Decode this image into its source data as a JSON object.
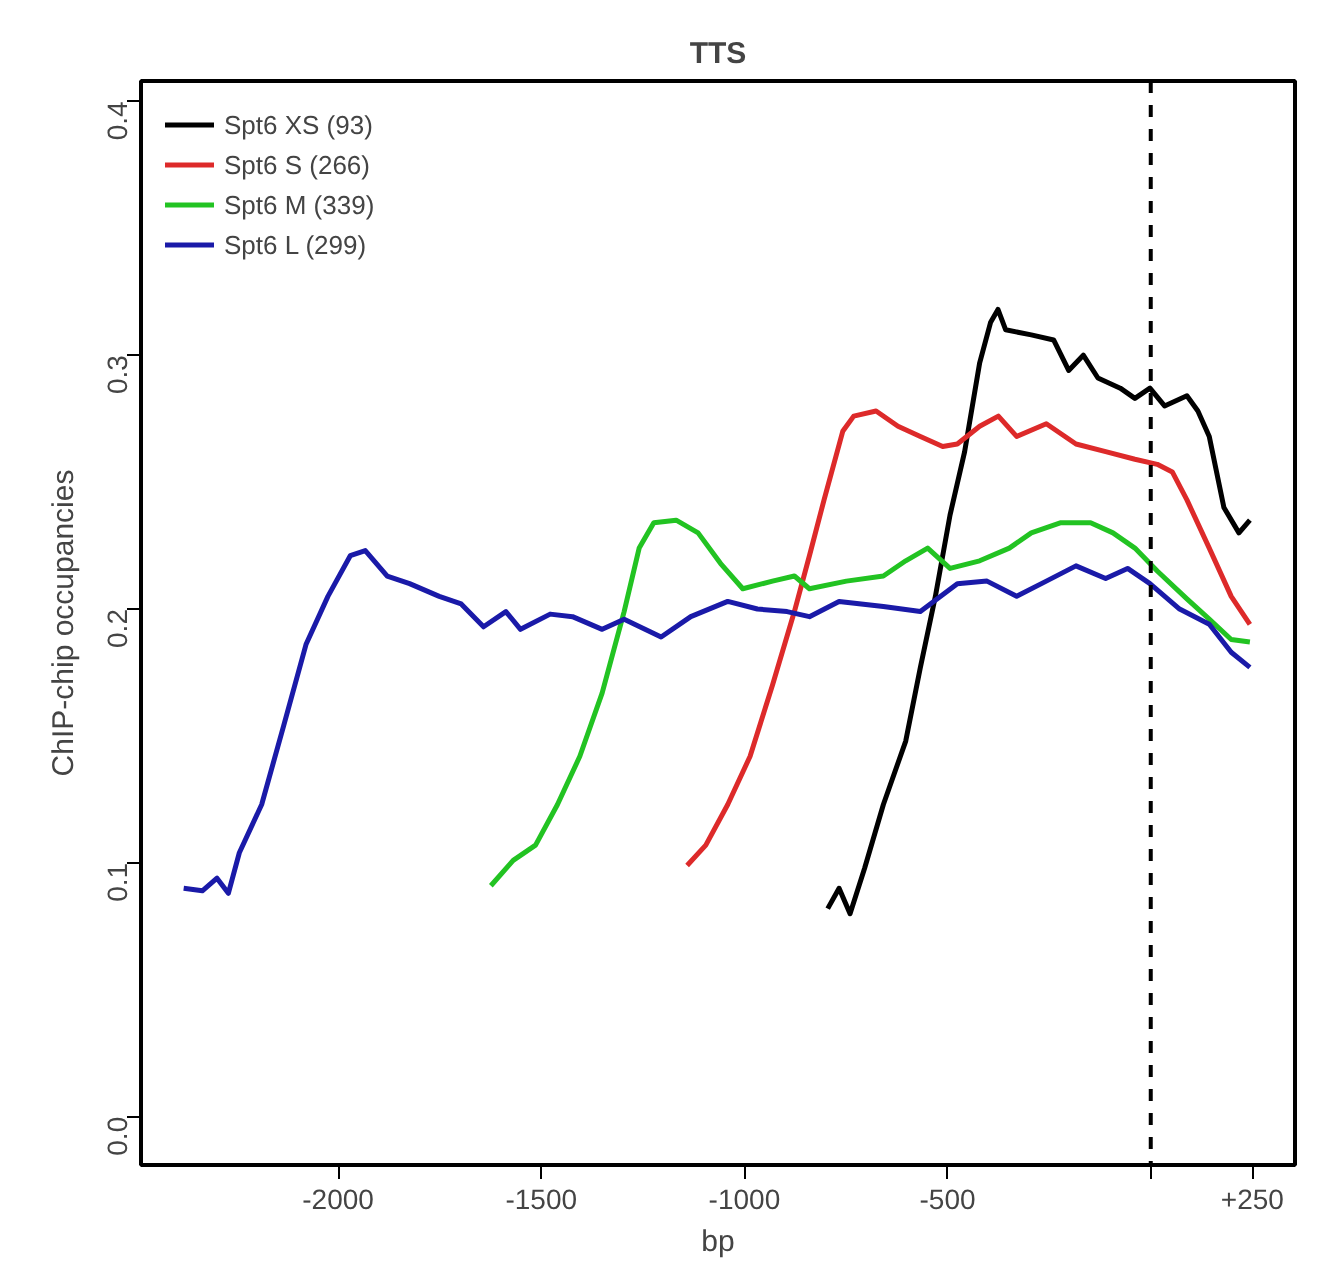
{
  "chart_data": {
    "type": "line",
    "title": "TTS",
    "xlabel": "bp",
    "ylabel": "ChIP-chip occupancies",
    "xlim": [
      -2485,
      355
    ],
    "ylim": [
      -0.019,
      0.408
    ],
    "xticks": [
      -2000,
      -1500,
      -1000,
      -500,
      {
        "value": 0,
        "label": null
      },
      {
        "value": 250,
        "label": "+250"
      }
    ],
    "yticks": [
      {
        "value": 0,
        "label": "0.0"
      },
      0.1,
      0.2,
      0.3,
      0.4
    ],
    "grid": false,
    "legend": "top left",
    "marker": "none",
    "line_style": "solid",
    "ref_lines": [
      {
        "axis": "x",
        "value": 0,
        "label": null,
        "color": "#000000",
        "line_style": "dashed"
      }
    ],
    "series": [
      {
        "name": "Spt6 XS (93)",
        "color": "#000000",
        "x": [
          -795,
          -767,
          -740,
          -704,
          -658,
          -603,
          -567,
          -530,
          -494,
          -458,
          -421,
          -394,
          -376,
          -357,
          -294,
          -239,
          -202,
          -166,
          -130,
          -75,
          -39,
          -2,
          34,
          89,
          116,
          144,
          180,
          217,
          244
        ],
        "values": [
          0.082,
          0.09,
          0.08,
          0.098,
          0.123,
          0.148,
          0.177,
          0.205,
          0.237,
          0.262,
          0.297,
          0.313,
          0.318,
          0.31,
          0.308,
          0.306,
          0.294,
          0.3,
          0.291,
          0.287,
          0.283,
          0.287,
          0.28,
          0.284,
          0.278,
          0.268,
          0.24,
          0.23,
          0.235
        ]
      },
      {
        "name": "Spt6 S (266)",
        "color": "#dd2a2a",
        "x": [
          -1141,
          -1095,
          -1041,
          -986,
          -931,
          -877,
          -840,
          -804,
          -758,
          -731,
          -676,
          -622,
          -567,
          -512,
          -476,
          -421,
          -375,
          -330,
          -257,
          -184,
          -111,
          -39,
          16,
          53,
          89,
          144,
          198,
          244
        ],
        "values": [
          0.099,
          0.107,
          0.123,
          0.142,
          0.17,
          0.199,
          0.221,
          0.243,
          0.27,
          0.276,
          0.278,
          0.272,
          0.268,
          0.264,
          0.265,
          0.272,
          0.276,
          0.268,
          0.273,
          0.265,
          0.262,
          0.259,
          0.257,
          0.254,
          0.243,
          0.224,
          0.205,
          0.194
        ]
      },
      {
        "name": "Spt6 M (339)",
        "color": "#22c322",
        "x": [
          -1624,
          -1569,
          -1514,
          -1460,
          -1405,
          -1350,
          -1296,
          -1259,
          -1223,
          -1168,
          -1114,
          -1059,
          -1004,
          -931,
          -877,
          -840,
          -749,
          -658,
          -603,
          -549,
          -494,
          -421,
          -348,
          -294,
          -221,
          -148,
          -93,
          -39,
          16,
          89,
          144,
          198,
          244
        ],
        "values": [
          0.091,
          0.101,
          0.107,
          0.123,
          0.142,
          0.167,
          0.199,
          0.224,
          0.234,
          0.235,
          0.23,
          0.218,
          0.208,
          0.211,
          0.213,
          0.208,
          0.211,
          0.213,
          0.219,
          0.224,
          0.216,
          0.219,
          0.224,
          0.23,
          0.234,
          0.234,
          0.23,
          0.224,
          0.215,
          0.204,
          0.196,
          0.188,
          0.187
        ]
      },
      {
        "name": "Spt6 L (299)",
        "color": "#1a1aa8",
        "x": [
          -2380,
          -2334,
          -2298,
          -2270,
          -2243,
          -2188,
          -2134,
          -2079,
          -2025,
          -1970,
          -1933,
          -1879,
          -1824,
          -1751,
          -1697,
          -1642,
          -1587,
          -1551,
          -1478,
          -1423,
          -1350,
          -1296,
          -1205,
          -1132,
          -1041,
          -968,
          -895,
          -840,
          -767,
          -658,
          -567,
          -476,
          -403,
          -330,
          -257,
          -184,
          -111,
          -57,
          -2,
          71,
          144,
          198,
          244
        ],
        "values": [
          0.09,
          0.089,
          0.094,
          0.088,
          0.104,
          0.123,
          0.154,
          0.186,
          0.205,
          0.221,
          0.223,
          0.213,
          0.21,
          0.205,
          0.202,
          0.193,
          0.199,
          0.192,
          0.198,
          0.197,
          0.192,
          0.196,
          0.189,
          0.197,
          0.203,
          0.2,
          0.199,
          0.197,
          0.203,
          0.201,
          0.199,
          0.21,
          0.211,
          0.205,
          0.211,
          0.217,
          0.212,
          0.216,
          0.21,
          0.2,
          0.194,
          0.183,
          0.177
        ]
      }
    ]
  }
}
